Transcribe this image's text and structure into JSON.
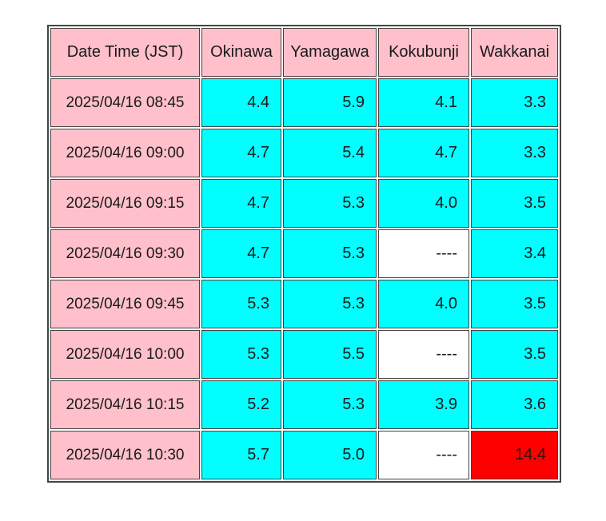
{
  "colors": {
    "pink": "#FFC0CB",
    "cyan": "#00FFFF",
    "red": "#FF0000",
    "white": "#FFFFFF",
    "border": "#444444",
    "text": "#1a1a1a"
  },
  "table": {
    "header": {
      "datetime_label": "Date Time (JST)",
      "stations": [
        "Okinawa",
        "Yamagawa",
        "Kokubunji",
        "Wakkanai"
      ]
    },
    "rows": [
      {
        "datetime": "2025/04/16 08:45",
        "cells": [
          {
            "v": "4.4",
            "state": "normal"
          },
          {
            "v": "5.9",
            "state": "normal"
          },
          {
            "v": "4.1",
            "state": "normal"
          },
          {
            "v": "3.3",
            "state": "normal"
          }
        ]
      },
      {
        "datetime": "2025/04/16 09:00",
        "cells": [
          {
            "v": "4.7",
            "state": "normal"
          },
          {
            "v": "5.4",
            "state": "normal"
          },
          {
            "v": "4.7",
            "state": "normal"
          },
          {
            "v": "3.3",
            "state": "normal"
          }
        ]
      },
      {
        "datetime": "2025/04/16 09:15",
        "cells": [
          {
            "v": "4.7",
            "state": "normal"
          },
          {
            "v": "5.3",
            "state": "normal"
          },
          {
            "v": "4.0",
            "state": "normal"
          },
          {
            "v": "3.5",
            "state": "normal"
          }
        ]
      },
      {
        "datetime": "2025/04/16 09:30",
        "cells": [
          {
            "v": "4.7",
            "state": "normal"
          },
          {
            "v": "5.3",
            "state": "normal"
          },
          {
            "v": "----",
            "state": "missing"
          },
          {
            "v": "3.4",
            "state": "normal"
          }
        ]
      },
      {
        "datetime": "2025/04/16 09:45",
        "cells": [
          {
            "v": "5.3",
            "state": "normal"
          },
          {
            "v": "5.3",
            "state": "normal"
          },
          {
            "v": "4.0",
            "state": "normal"
          },
          {
            "v": "3.5",
            "state": "normal"
          }
        ]
      },
      {
        "datetime": "2025/04/16 10:00",
        "cells": [
          {
            "v": "5.3",
            "state": "normal"
          },
          {
            "v": "5.5",
            "state": "normal"
          },
          {
            "v": "----",
            "state": "missing"
          },
          {
            "v": "3.5",
            "state": "normal"
          }
        ]
      },
      {
        "datetime": "2025/04/16 10:15",
        "cells": [
          {
            "v": "5.2",
            "state": "normal"
          },
          {
            "v": "5.3",
            "state": "normal"
          },
          {
            "v": "3.9",
            "state": "normal"
          },
          {
            "v": "3.6",
            "state": "normal"
          }
        ]
      },
      {
        "datetime": "2025/04/16 10:30",
        "cells": [
          {
            "v": "5.7",
            "state": "normal"
          },
          {
            "v": "5.0",
            "state": "normal"
          },
          {
            "v": "----",
            "state": "missing"
          },
          {
            "v": "14.4",
            "state": "alert"
          }
        ]
      }
    ]
  },
  "chart_data": {
    "type": "table",
    "title": "",
    "columns": [
      "Date Time (JST)",
      "Okinawa",
      "Yamagawa",
      "Kokubunji",
      "Wakkanai"
    ],
    "rows": [
      [
        "2025/04/16 08:45",
        4.4,
        5.9,
        4.1,
        3.3
      ],
      [
        "2025/04/16 09:00",
        4.7,
        5.4,
        4.7,
        3.3
      ],
      [
        "2025/04/16 09:15",
        4.7,
        5.3,
        4.0,
        3.5
      ],
      [
        "2025/04/16 09:30",
        4.7,
        5.3,
        null,
        3.4
      ],
      [
        "2025/04/16 09:45",
        5.3,
        5.3,
        4.0,
        3.5
      ],
      [
        "2025/04/16 10:00",
        5.3,
        5.5,
        null,
        3.5
      ],
      [
        "2025/04/16 10:15",
        5.2,
        5.3,
        3.9,
        3.6
      ],
      [
        "2025/04/16 10:30",
        5.7,
        5.0,
        null,
        14.4
      ]
    ],
    "missing_marker": "----",
    "cell_states": {
      "normal_bg": "#00FFFF",
      "missing_bg": "#FFFFFF",
      "alert_bg": "#FF0000",
      "header_bg": "#FFC0CB"
    },
    "alert_cells": [
      {
        "row": 7,
        "column": "Wakkanai",
        "value": 14.4
      }
    ]
  }
}
